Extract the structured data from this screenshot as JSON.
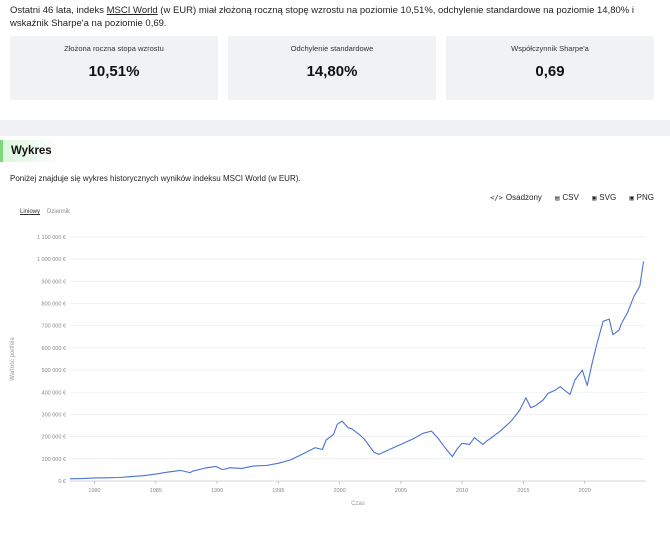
{
  "intro": {
    "before": "Ostatni 46 lata, indeks ",
    "link": "MSCI World",
    "after": " (w EUR) miał złożoną roczną stopę wzrostu na poziomie 10,51%, odchylenie standardowe na poziomie 14,80% i wskaźnik Sharpe'a na poziomie 0,69."
  },
  "cards": [
    {
      "label": "Złożona roczna stopa wzrostu",
      "value": "10,51%"
    },
    {
      "label": "Odchylenie standardowe",
      "value": "14,80%"
    },
    {
      "label": "Współczynnik Sharpe'a",
      "value": "0,69"
    }
  ],
  "section": {
    "title": "Wykres",
    "description": "Poniżej znajduje się wykres historycznych wyników indeksu MSCI World (w EUR)."
  },
  "toolbar": {
    "embed": {
      "icon": "</>",
      "label": "Osadzony"
    },
    "csv": {
      "icon": "▤",
      "label": "CSV"
    },
    "svg": {
      "icon": "▣",
      "label": "SVG"
    },
    "png": {
      "icon": "▣",
      "label": "PNG"
    }
  },
  "scale_toggle": {
    "linear": "Liniowy",
    "log": "Dziennik"
  },
  "chart_data": {
    "type": "line",
    "xlabel": "Czas",
    "ylabel": "Wartość portfela",
    "xlim": [
      1978,
      2025
    ],
    "ylim": [
      0,
      1100000
    ],
    "x_ticks": [
      1980,
      1985,
      1990,
      1995,
      2000,
      2005,
      2010,
      2015,
      2020
    ],
    "y_ticks": [
      0,
      100000,
      200000,
      300000,
      400000,
      500000,
      600000,
      700000,
      800000,
      900000,
      1000000,
      1100000
    ],
    "y_tick_labels": [
      "0 €",
      "100 000 €",
      "200 000 €",
      "300 000 €",
      "400 000 €",
      "500 000 €",
      "600 000 €",
      "700 000 €",
      "800 000 €",
      "900 000 €",
      "1 000 000 €",
      "1 100 000 €"
    ],
    "series": [
      {
        "color": "#4a72d4",
        "x": [
          1978,
          1979,
          1980,
          1981,
          1982,
          1983,
          1984,
          1985,
          1986,
          1987,
          1987.8,
          1988,
          1989,
          1989.9,
          1990.4,
          1990.8,
          1991,
          1992,
          1993,
          1994,
          1995,
          1996,
          1997,
          1998,
          1998.6,
          1998.9,
          1999.5,
          1999.8,
          2000.2,
          2000.7,
          2001,
          2001.6,
          2002,
          2002.8,
          2003.2,
          2004,
          2005,
          2006,
          2006.8,
          2007.5,
          2008,
          2008.6,
          2009.2,
          2009.6,
          2010,
          2010.6,
          2011,
          2011.7,
          2012,
          2013,
          2014,
          2014.7,
          2015.2,
          2015.6,
          2016,
          2016.6,
          2017,
          2017.6,
          2018,
          2018.8,
          2019.2,
          2019.8,
          2020.2,
          2020.6,
          2021,
          2021.5,
          2022,
          2022.3,
          2022.8,
          2023,
          2023.5,
          2024,
          2024.5,
          2024.8
        ],
        "y": [
          10000,
          11000,
          14000,
          14500,
          16000,
          20000,
          24000,
          31000,
          40000,
          48000,
          38000,
          44000,
          58000,
          66000,
          52000,
          55000,
          60000,
          57000,
          68000,
          70000,
          80000,
          95000,
          122000,
          150000,
          142000,
          185000,
          210000,
          255000,
          270000,
          240000,
          235000,
          210000,
          190000,
          130000,
          120000,
          140000,
          165000,
          190000,
          215000,
          225000,
          195000,
          150000,
          110000,
          145000,
          170000,
          165000,
          195000,
          165000,
          180000,
          220000,
          270000,
          320000,
          375000,
          330000,
          340000,
          365000,
          395000,
          410000,
          425000,
          390000,
          455000,
          500000,
          430000,
          530000,
          620000,
          720000,
          730000,
          660000,
          680000,
          710000,
          760000,
          830000,
          880000,
          990000
        ]
      }
    ]
  }
}
